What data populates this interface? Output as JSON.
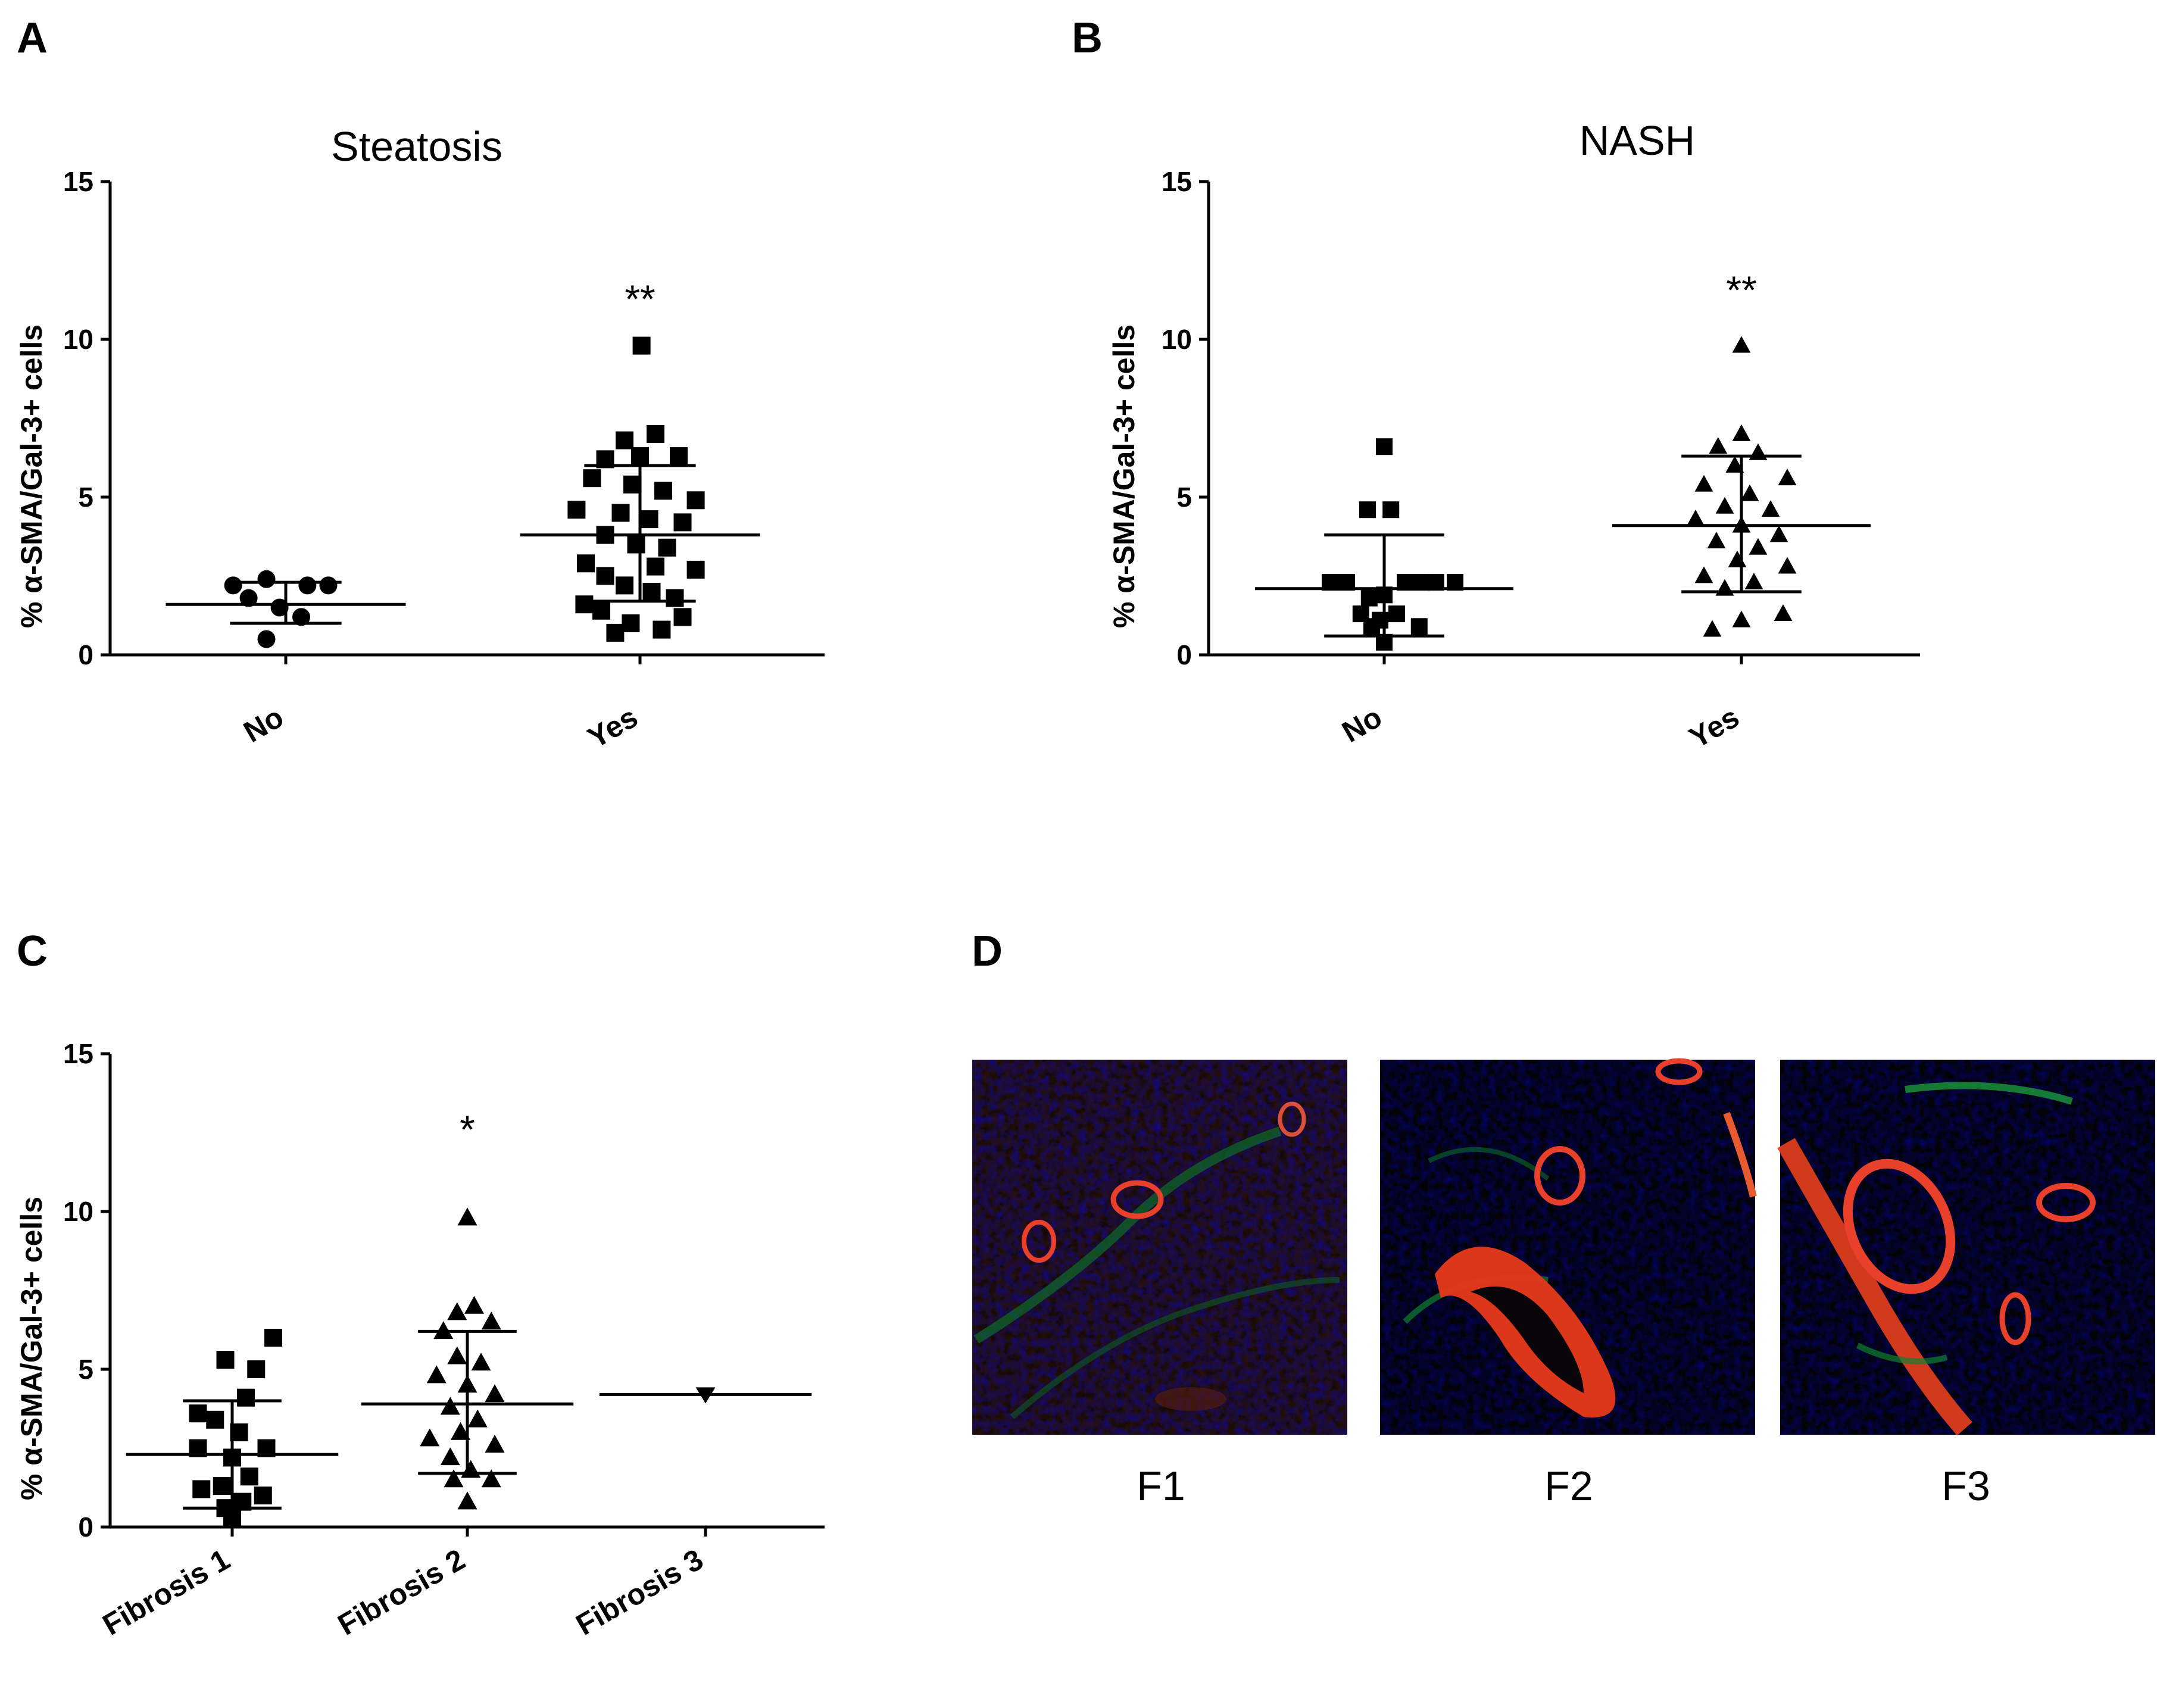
{
  "panels": {
    "A": "A",
    "B": "B",
    "C": "C",
    "D": "D"
  },
  "chart_data": [
    {
      "id": "A",
      "type": "scatter",
      "title": "Steatosis",
      "ylabel": "% α-SMA/Gal-3+ cells",
      "ylim": [
        0,
        15
      ],
      "yticks": [
        "0",
        "5",
        "10",
        "15"
      ],
      "groups": [
        {
          "category": "No",
          "marker": "circle",
          "points": [
            [
              -0.68,
              2.2
            ],
            [
              0.28,
              2.2
            ],
            [
              -0.25,
              2.4
            ],
            [
              0.55,
              2.2
            ],
            [
              -0.48,
              1.8
            ],
            [
              -0.08,
              1.5
            ],
            [
              0.2,
              1.2
            ],
            [
              -0.25,
              0.5
            ]
          ],
          "mean": 1.6,
          "error_low": 1.0,
          "error_high": 2.3
        },
        {
          "category": "Yes",
          "marker": "square",
          "points": [
            [
              0.02,
              9.8
            ],
            [
              -0.2,
              6.8
            ],
            [
              0.2,
              7.0
            ],
            [
              -0.45,
              6.2
            ],
            [
              0.0,
              6.3
            ],
            [
              0.5,
              6.3
            ],
            [
              -0.62,
              5.6
            ],
            [
              -0.1,
              5.4
            ],
            [
              0.3,
              5.2
            ],
            [
              0.72,
              4.9
            ],
            [
              -0.82,
              4.6
            ],
            [
              -0.25,
              4.5
            ],
            [
              0.12,
              4.3
            ],
            [
              0.55,
              4.2
            ],
            [
              -0.45,
              3.8
            ],
            [
              -0.05,
              3.5
            ],
            [
              0.35,
              3.4
            ],
            [
              -0.7,
              2.9
            ],
            [
              0.2,
              2.8
            ],
            [
              0.72,
              2.7
            ],
            [
              -0.45,
              2.5
            ],
            [
              -0.2,
              2.2
            ],
            [
              0.15,
              2.0
            ],
            [
              0.45,
              1.8
            ],
            [
              -0.72,
              1.6
            ],
            [
              -0.5,
              1.4
            ],
            [
              0.55,
              1.2
            ],
            [
              -0.12,
              1.0
            ],
            [
              0.28,
              0.8
            ],
            [
              -0.32,
              0.7
            ]
          ],
          "mean": 3.8,
          "error_low": 1.7,
          "error_high": 6.0
        }
      ],
      "significance": "**"
    },
    {
      "id": "B",
      "type": "scatter",
      "title": "NASH",
      "ylabel": "% α-SMA/Gal-3+ cells",
      "ylim": [
        0,
        15
      ],
      "yticks": [
        "0",
        "5",
        "10",
        "15"
      ],
      "groups": [
        {
          "category": "No",
          "marker": "square",
          "points": [
            [
              0.0,
              6.6
            ],
            [
              -0.2,
              4.6
            ],
            [
              0.08,
              4.6
            ],
            [
              -0.65,
              2.3
            ],
            [
              -0.45,
              2.3
            ],
            [
              0.25,
              2.3
            ],
            [
              0.45,
              2.3
            ],
            [
              0.62,
              2.3
            ],
            [
              0.85,
              2.3
            ],
            [
              -0.18,
              1.8
            ],
            [
              0.0,
              1.9
            ],
            [
              -0.28,
              1.3
            ],
            [
              0.15,
              1.3
            ],
            [
              -0.05,
              1.1
            ],
            [
              0.42,
              0.9
            ],
            [
              -0.15,
              0.9
            ],
            [
              0.0,
              0.4
            ]
          ],
          "mean": 2.1,
          "error_low": 0.6,
          "error_high": 3.8
        },
        {
          "category": "Yes",
          "marker": "triangle-up",
          "points": [
            [
              0.0,
              9.8
            ],
            [
              0.0,
              7.0
            ],
            [
              -0.28,
              6.6
            ],
            [
              0.2,
              6.4
            ],
            [
              -0.08,
              6.0
            ],
            [
              0.55,
              5.6
            ],
            [
              -0.45,
              5.4
            ],
            [
              0.1,
              5.1
            ],
            [
              -0.2,
              4.7
            ],
            [
              0.35,
              4.6
            ],
            [
              -0.55,
              4.3
            ],
            [
              0.0,
              4.1
            ],
            [
              0.45,
              3.8
            ],
            [
              -0.3,
              3.6
            ],
            [
              0.2,
              3.4
            ],
            [
              -0.05,
              3.0
            ],
            [
              0.55,
              2.8
            ],
            [
              -0.45,
              2.5
            ],
            [
              0.15,
              2.3
            ],
            [
              -0.2,
              2.1
            ],
            [
              0.5,
              1.3
            ],
            [
              -0.35,
              0.8
            ],
            [
              0.0,
              1.1
            ]
          ],
          "mean": 4.1,
          "error_low": 2.0,
          "error_high": 6.3
        }
      ],
      "significance": "**"
    },
    {
      "id": "C",
      "type": "scatter",
      "title": "",
      "ylabel": "% α-SMA/Gal-3+ cells",
      "ylim": [
        0,
        15
      ],
      "yticks": [
        "0",
        "5",
        "10",
        "15"
      ],
      "groups": [
        {
          "category": "Fibrosis 1",
          "marker": "square",
          "points": [
            [
              0.6,
              6.0
            ],
            [
              -0.1,
              5.3
            ],
            [
              0.35,
              5.0
            ],
            [
              0.2,
              4.1
            ],
            [
              -0.5,
              3.6
            ],
            [
              -0.25,
              3.4
            ],
            [
              0.1,
              3.0
            ],
            [
              0.5,
              2.5
            ],
            [
              -0.5,
              2.5
            ],
            [
              0.0,
              2.2
            ],
            [
              -0.45,
              1.2
            ],
            [
              -0.15,
              1.3
            ],
            [
              0.25,
              1.6
            ],
            [
              0.45,
              1.0
            ],
            [
              0.15,
              0.8
            ],
            [
              -0.1,
              0.6
            ],
            [
              0.0,
              0.3
            ]
          ],
          "mean": 2.3,
          "error_low": 0.6,
          "error_high": 4.0
        },
        {
          "category": "Fibrosis 2",
          "marker": "triangle-up",
          "points": [
            [
              0.0,
              9.8
            ],
            [
              0.1,
              7.0
            ],
            [
              -0.15,
              6.8
            ],
            [
              0.35,
              6.5
            ],
            [
              -0.35,
              6.2
            ],
            [
              -0.15,
              5.4
            ],
            [
              0.2,
              5.2
            ],
            [
              -0.45,
              4.8
            ],
            [
              0.0,
              4.5
            ],
            [
              0.4,
              4.2
            ],
            [
              -0.25,
              3.8
            ],
            [
              0.15,
              3.4
            ],
            [
              -0.1,
              3.0
            ],
            [
              0.4,
              2.6
            ],
            [
              -0.55,
              2.8
            ],
            [
              -0.25,
              2.2
            ],
            [
              0.05,
              1.8
            ],
            [
              0.35,
              1.5
            ],
            [
              -0.2,
              1.5
            ],
            [
              0.0,
              0.8
            ]
          ],
          "mean": 3.9,
          "error_low": 1.7,
          "error_high": 6.2
        },
        {
          "category": "Fibrosis 3",
          "marker": "triangle-down",
          "points": [
            [
              0.0,
              4.2
            ]
          ],
          "mean": 4.2,
          "error_low": 4.2,
          "error_high": 4.2
        }
      ],
      "significance": "*"
    }
  ],
  "micrographs": {
    "labels": [
      "F1",
      "F2",
      "F3"
    ]
  }
}
